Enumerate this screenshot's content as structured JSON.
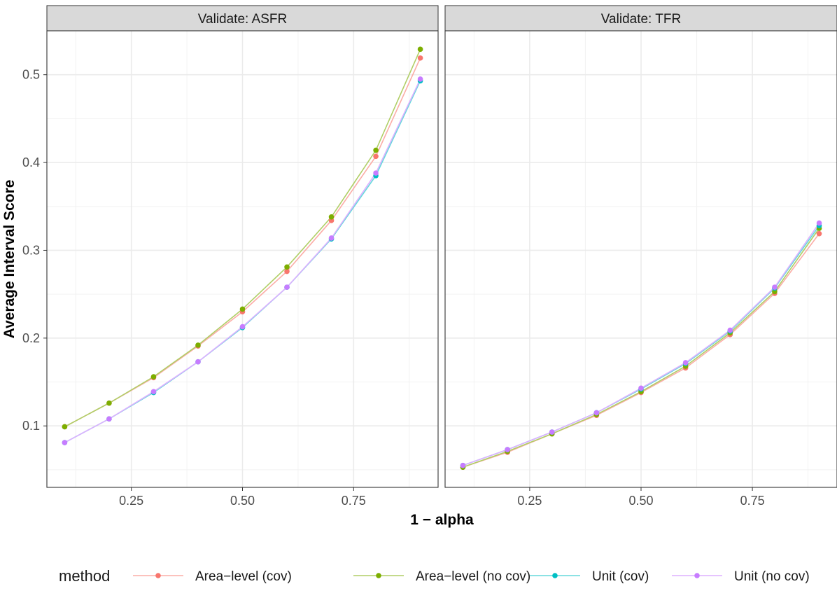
{
  "chart_data": {
    "type": "line",
    "xlabel": "1 − alpha",
    "ylabel": "Average Interval Score",
    "xlim": [
      0.06,
      0.94
    ],
    "ylim": [
      0.03,
      0.55
    ],
    "x_ticks": [
      0.25,
      0.5,
      0.75
    ],
    "x_tick_labels": [
      "0.25",
      "0.50",
      "0.75"
    ],
    "y_ticks": [
      0.1,
      0.2,
      0.3,
      0.4,
      0.5
    ],
    "y_tick_labels": [
      "0.1",
      "0.2",
      "0.3",
      "0.4",
      "0.5"
    ],
    "grid": true,
    "legend": {
      "title": "method",
      "position": "bottom"
    },
    "x": [
      0.1,
      0.2,
      0.3,
      0.4,
      0.5,
      0.6,
      0.7,
      0.8,
      0.9
    ],
    "colors": [
      "#F8766D",
      "#7CAE00",
      "#00BFC4",
      "#C77CFF"
    ],
    "panels": [
      {
        "title": "Validate: ASFR",
        "series": [
          {
            "name": "Area−level (cov)",
            "values": [
              0.099,
              0.126,
              0.155,
              0.191,
              0.23,
              0.276,
              0.334,
              0.407,
              0.519
            ]
          },
          {
            "name": "Area−level (no cov)",
            "values": [
              0.099,
              0.126,
              0.156,
              0.192,
              0.233,
              0.281,
              0.338,
              0.414,
              0.529
            ]
          },
          {
            "name": "Unit (cov)",
            "values": [
              0.081,
              0.108,
              0.138,
              0.173,
              0.212,
              0.258,
              0.313,
              0.385,
              0.493
            ]
          },
          {
            "name": "Unit (no cov)",
            "values": [
              0.081,
              0.108,
              0.139,
              0.173,
              0.213,
              0.258,
              0.314,
              0.388,
              0.495
            ]
          }
        ]
      },
      {
        "title": "Validate: TFR",
        "series": [
          {
            "name": "Area−level (cov)",
            "values": [
              0.053,
              0.07,
              0.091,
              0.112,
              0.138,
              0.166,
              0.204,
              0.251,
              0.319
            ]
          },
          {
            "name": "Area−level (no cov)",
            "values": [
              0.053,
              0.071,
              0.091,
              0.113,
              0.139,
              0.168,
              0.206,
              0.253,
              0.325
            ]
          },
          {
            "name": "Unit (cov)",
            "values": [
              0.055,
              0.073,
              0.093,
              0.115,
              0.142,
              0.171,
              0.208,
              0.257,
              0.328
            ]
          },
          {
            "name": "Unit (no cov)",
            "values": [
              0.055,
              0.073,
              0.093,
              0.115,
              0.143,
              0.172,
              0.209,
              0.258,
              0.331
            ]
          }
        ]
      }
    ]
  }
}
